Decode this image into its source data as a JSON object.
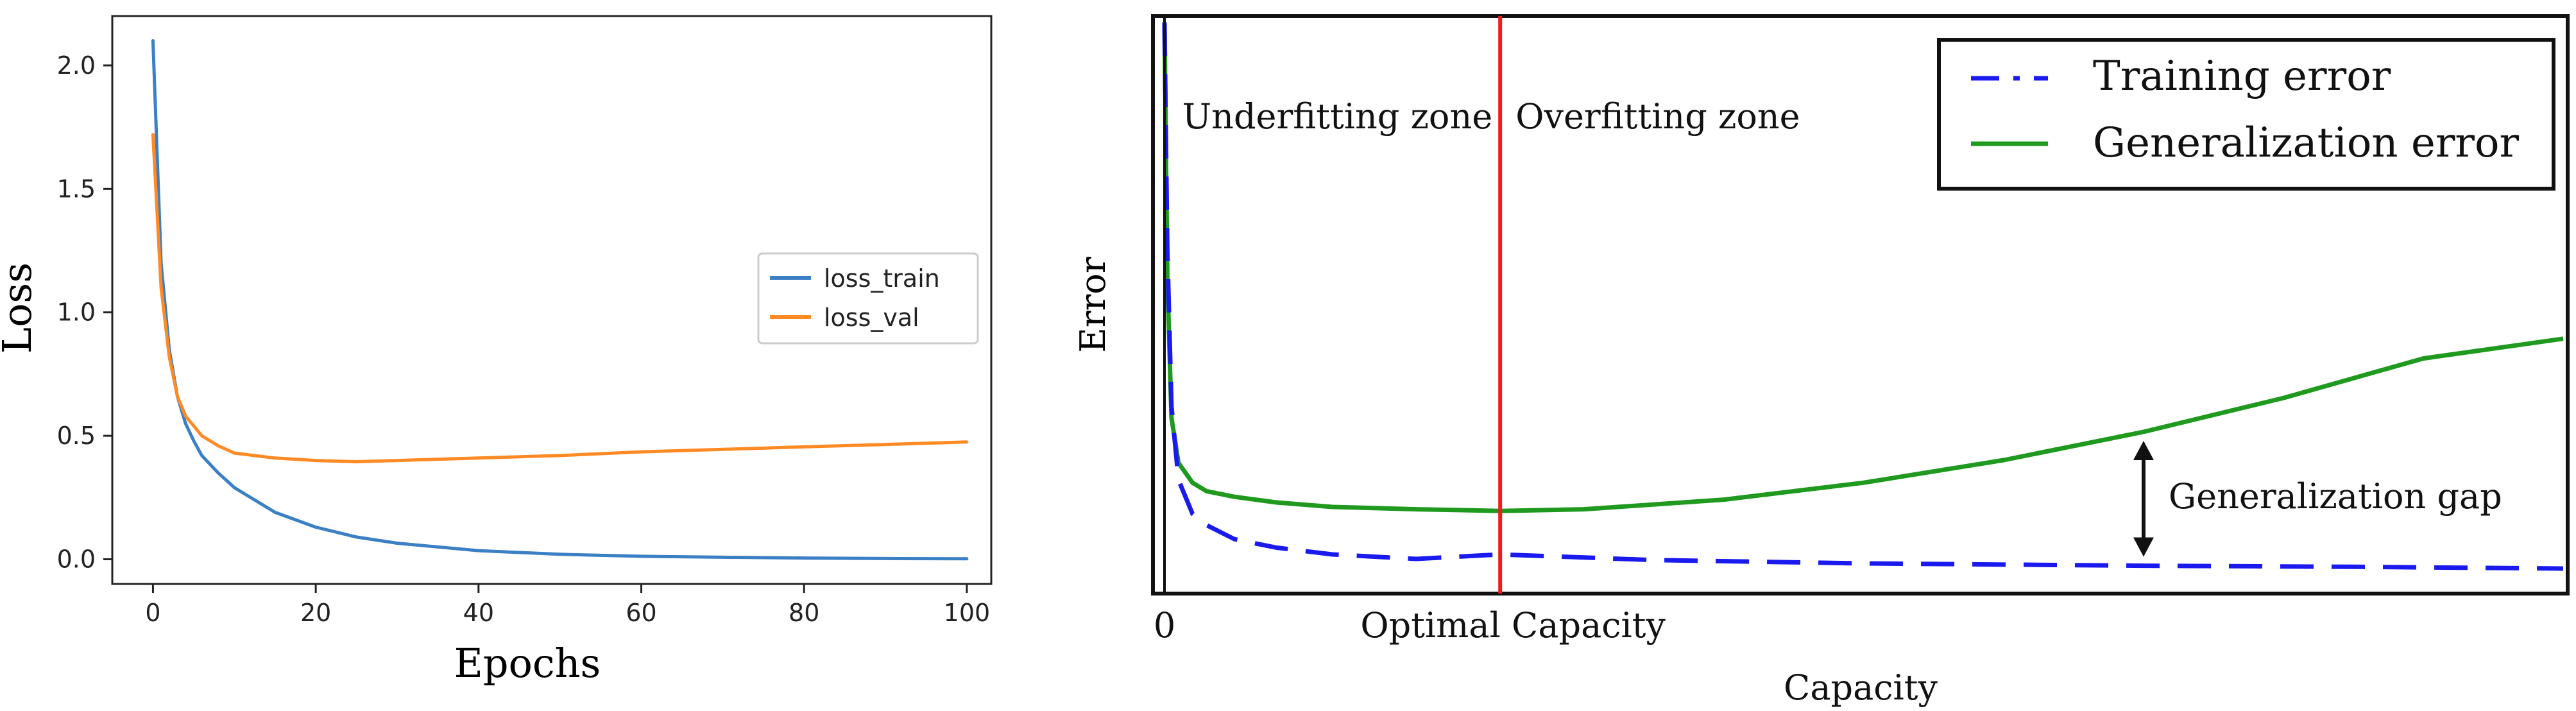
{
  "chart_data": [
    {
      "type": "line",
      "title": "",
      "xlabel": "Epochs",
      "ylabel": "Loss",
      "xlim": [
        -5,
        103
      ],
      "ylim": [
        -0.1,
        2.2
      ],
      "xticks": [
        0,
        20,
        40,
        60,
        80,
        100
      ],
      "xtick_labels": [
        "0",
        "20",
        "40",
        "60",
        "80",
        "100"
      ],
      "yticks": [
        0.0,
        0.5,
        1.0,
        1.5,
        2.0
      ],
      "ytick_labels": [
        "0.0",
        "0.5",
        "1.0",
        "1.5",
        "2.0"
      ],
      "grid": false,
      "legend_position": "center-right",
      "series": [
        {
          "name": "loss_train",
          "color": "#3b7fc4",
          "x": [
            0,
            1,
            2,
            3,
            4,
            5,
            6,
            8,
            10,
            12,
            15,
            20,
            25,
            30,
            40,
            50,
            60,
            70,
            80,
            90,
            100
          ],
          "values": [
            2.1,
            1.2,
            0.85,
            0.66,
            0.55,
            0.48,
            0.42,
            0.35,
            0.29,
            0.25,
            0.19,
            0.13,
            0.09,
            0.065,
            0.035,
            0.02,
            0.012,
            0.008,
            0.005,
            0.003,
            0.002
          ]
        },
        {
          "name": "loss_val",
          "color": "#ff8a24",
          "x": [
            0,
            1,
            2,
            3,
            4,
            5,
            6,
            8,
            10,
            15,
            20,
            25,
            30,
            40,
            50,
            60,
            70,
            80,
            90,
            100
          ],
          "values": [
            1.72,
            1.1,
            0.82,
            0.66,
            0.58,
            0.54,
            0.5,
            0.46,
            0.43,
            0.41,
            0.4,
            0.395,
            0.4,
            0.41,
            0.42,
            0.435,
            0.445,
            0.455,
            0.465,
            0.475
          ]
        }
      ]
    },
    {
      "type": "line",
      "title": "",
      "xlabel": "Capacity",
      "ylabel": "Error",
      "x_range": [
        0,
        100
      ],
      "y_range": [
        0,
        100
      ],
      "xtick_labels": [
        "0",
        "Optimal Capacity"
      ],
      "optimal_capacity_x": 24,
      "grid": false,
      "legend_position": "top-right",
      "series": [
        {
          "name": "Training error",
          "color": "#1a1aee",
          "linestyle": "dashed",
          "x": [
            0,
            0.2,
            0.5,
            1,
            2,
            3,
            5,
            8,
            12,
            18,
            24,
            35,
            50,
            70,
            85,
            100
          ],
          "values": [
            100,
            60,
            32,
            19,
            13,
            11,
            8.5,
            7,
            5.8,
            5,
            5.8,
            4.8,
            4.2,
            3.8,
            3.6,
            3.3
          ]
        },
        {
          "name": "Generalization error",
          "color": "#1f9a1f",
          "linestyle": "solid",
          "x": [
            0,
            0.2,
            0.5,
            1,
            2,
            3,
            5,
            8,
            12,
            18,
            24,
            30,
            40,
            50,
            60,
            70,
            80,
            90,
            100
          ],
          "values": [
            100,
            55,
            30,
            22,
            18.5,
            17,
            16,
            15,
            14.2,
            13.8,
            13.5,
            13.8,
            15.5,
            18.5,
            22.5,
            27.5,
            33.5,
            40.5,
            44
          ]
        }
      ],
      "annotations": [
        "Underfitting zone",
        "Overfitting zone",
        "Generalization gap"
      ],
      "gap_x": 70
    }
  ]
}
